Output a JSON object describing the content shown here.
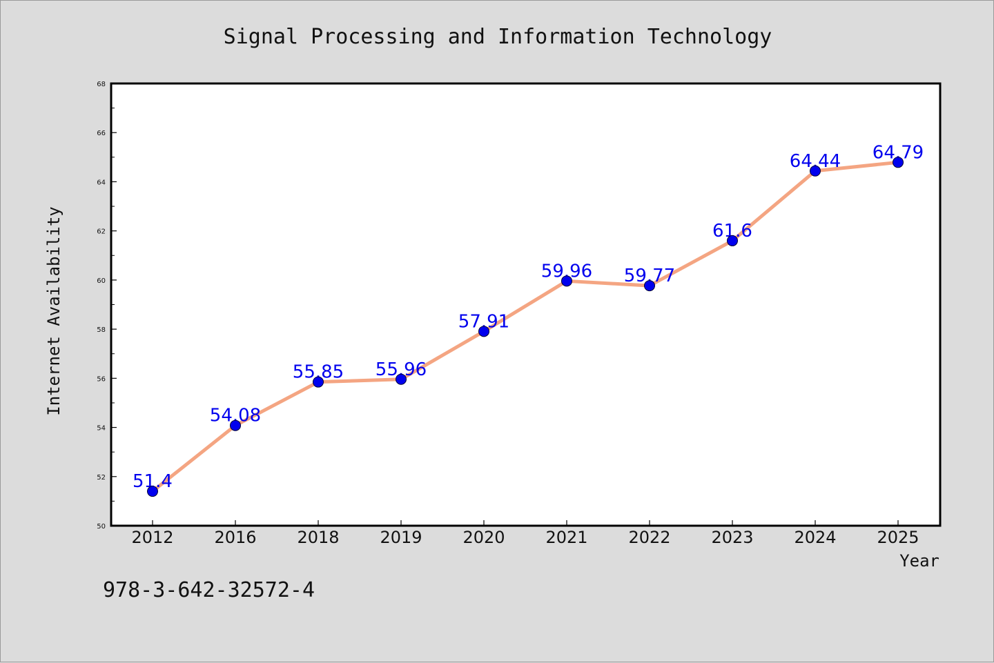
{
  "chart_data": {
    "type": "line",
    "title": "Signal Processing and Information Technology",
    "xlabel": "Year",
    "ylabel": "Internet Availability",
    "categories": [
      "2012",
      "2016",
      "2018",
      "2019",
      "2020",
      "2021",
      "2022",
      "2023",
      "2024",
      "2025"
    ],
    "series": [
      {
        "values": [
          51.4,
          54.08,
          55.85,
          55.96,
          57.91,
          59.96,
          59.77,
          61.6,
          64.44,
          64.79
        ],
        "data_labels": [
          "51.4",
          "54.08",
          "55.85",
          "55.96",
          "57.91",
          "59.96",
          "59.77",
          "61.6",
          "64.44",
          "64.79"
        ],
        "line_color": "#f4a582",
        "marker_color": "#0000ee",
        "label_color": "#0000ee"
      }
    ],
    "ylim": [
      50,
      68
    ],
    "yticks": [
      "50",
      "52",
      "54",
      "56",
      "58",
      "60",
      "62",
      "64",
      "66",
      "68"
    ],
    "grid": false,
    "legend": "none"
  },
  "footer": {
    "code": "978-3-642-32572-4"
  },
  "colors": {
    "background": "#dcdcdc",
    "plot_background": "#ffffff",
    "axis": "#000000"
  }
}
